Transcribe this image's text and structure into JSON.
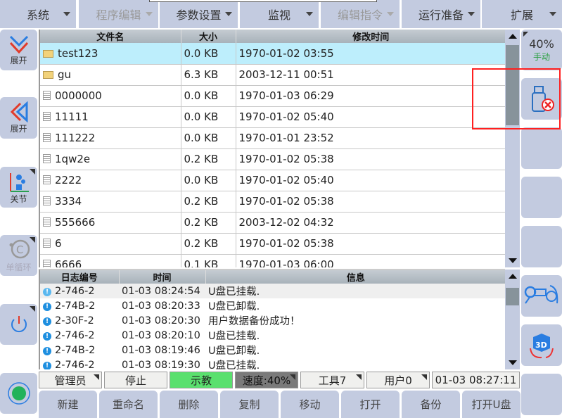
{
  "menu": [
    {
      "label": "系统",
      "enabled": true
    },
    {
      "label": "程序编辑",
      "enabled": false
    },
    {
      "label": "参数设置",
      "enabled": true
    },
    {
      "label": "监视",
      "enabled": true
    },
    {
      "label": "编辑指令",
      "enabled": false
    },
    {
      "label": "运行准备",
      "enabled": true
    },
    {
      "label": "扩展",
      "enabled": true
    }
  ],
  "left": {
    "expand1": "展开",
    "expand2": "展开",
    "joint": "关节",
    "cycle": "单循环"
  },
  "right": {
    "speed": "40%",
    "mode": "手动"
  },
  "files": {
    "headers": [
      "文件名",
      "大小",
      "修改时间"
    ],
    "rows": [
      {
        "name": "test123",
        "type": "folder",
        "size": "0.0 KB",
        "time": "1970-01-02 03:55"
      },
      {
        "name": "gu",
        "type": "folder",
        "size": "6.3 KB",
        "time": "2003-12-11 00:51"
      },
      {
        "name": "0000000",
        "type": "file",
        "size": "0.0 KB",
        "time": "1970-01-03 06:29"
      },
      {
        "name": "11111",
        "type": "file",
        "size": "0.0 KB",
        "time": "1970-01-02 05:40"
      },
      {
        "name": "111222",
        "type": "file",
        "size": "0.0 KB",
        "time": "1970-01-01 23:52"
      },
      {
        "name": "1qw2e",
        "type": "file",
        "size": "0.2 KB",
        "time": "1970-01-02 05:38"
      },
      {
        "name": "2222",
        "type": "file",
        "size": "0.0 KB",
        "time": "1970-01-02 05:40"
      },
      {
        "name": "3334",
        "type": "file",
        "size": "0.2 KB",
        "time": "1970-01-02 05:38"
      },
      {
        "name": "555666",
        "type": "file",
        "size": "0.2 KB",
        "time": "2003-12-02 04:32"
      },
      {
        "name": "6",
        "type": "file",
        "size": "0.2 KB",
        "time": "1970-01-02 05:38"
      },
      {
        "name": "6666",
        "type": "file",
        "size": "0.1 KB",
        "time": "1970-01-03 06:00"
      }
    ]
  },
  "log": {
    "headers": [
      "日志编号",
      "时间",
      "信息"
    ],
    "rows": [
      {
        "id": "2-746-2",
        "time": "01-03 08:24:54",
        "msg": "U盘已挂载."
      },
      {
        "id": "2-74B-2",
        "time": "01-03 08:20:33",
        "msg": "U盘已卸载."
      },
      {
        "id": "2-30F-2",
        "time": "01-03 08:20:30",
        "msg": "用户数据备份成功！"
      },
      {
        "id": "2-746-2",
        "time": "01-03 08:20:10",
        "msg": "U盘已挂载."
      },
      {
        "id": "2-74B-2",
        "time": "01-03 08:19:46",
        "msg": "U盘已卸载."
      },
      {
        "id": "2-746-2",
        "time": "01-03 08:19:30",
        "msg": "U盘已挂载."
      }
    ]
  },
  "status": {
    "user": "管理员",
    "state": "停止",
    "mode": "示教",
    "speed": "速度:40%",
    "tool": "工具7",
    "coord": "用户0",
    "clock": "01-03 08:27:11"
  },
  "buttons": [
    "新建",
    "重命名",
    "删除",
    "复制",
    "移动",
    "打开",
    "备份",
    "打开U盘"
  ],
  "colors": {
    "panel": "#c3cbe0",
    "selected": "#bdeefc",
    "teach": "#5ae06e",
    "highlight": "#ff2020"
  }
}
